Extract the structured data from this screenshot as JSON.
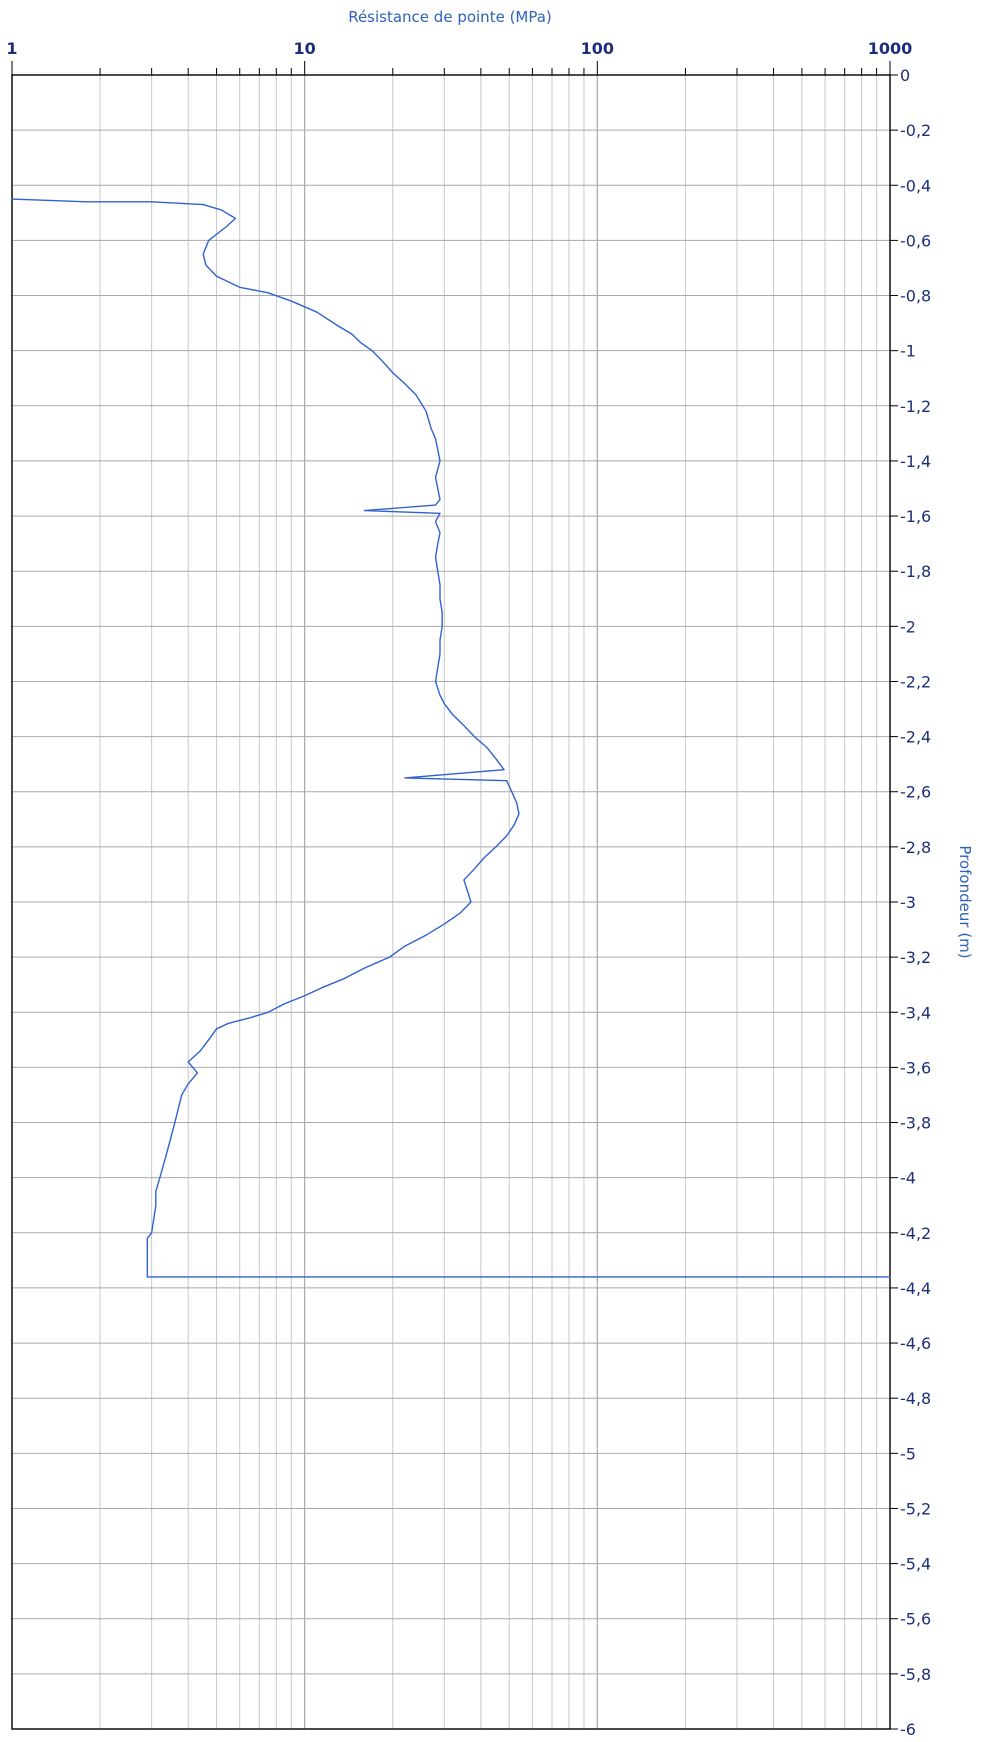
{
  "chart_data": {
    "type": "line",
    "xlabel": "Résistance de pointe (MPa)",
    "ylabel": "Profondeur (m)",
    "x_scale": "log",
    "xlim": [
      1,
      1000
    ],
    "ylim": [
      -6,
      0
    ],
    "x_tick_labels": [
      "1",
      "10",
      "100",
      "1000"
    ],
    "x_tick_values": [
      1,
      10,
      100,
      1000
    ],
    "y_tick_values": [
      0,
      -0.2,
      -0.4,
      -0.6,
      -0.8,
      -1,
      -1.2,
      -1.4,
      -1.6,
      -1.8,
      -2,
      -2.2,
      -2.4,
      -2.6,
      -2.8,
      -3,
      -3.2,
      -3.4,
      -3.6,
      -3.8,
      -4,
      -4.2,
      -4.4,
      -4.6,
      -4.8,
      -5,
      -5.2,
      -5.4,
      -5.6,
      -5.8,
      -6
    ],
    "y_tick_labels": [
      "0",
      "-0,2",
      "-0,4",
      "-0,6",
      "-0,8",
      "-1",
      "-1,2",
      "-1,4",
      "-1,6",
      "-1,8",
      "-2",
      "-2,2",
      "-2,4",
      "-2,6",
      "-2,8",
      "-3",
      "-3,2",
      "-3,4",
      "-3,6",
      "-3,8",
      "-4",
      "-4,2",
      "-4,4",
      "-4,6",
      "-4,8",
      "-5",
      "-5,2",
      "-5,4",
      "-5,6",
      "-5,8",
      "-6"
    ],
    "grid": true,
    "colors": {
      "series": "#2f62d0",
      "grid": "#c8c8c8",
      "axis_text": "#1d2f7a",
      "title": "#2f62b8"
    },
    "series": [
      {
        "name": "",
        "points": [
          [
            1.0,
            -0.45
          ],
          [
            1.8,
            -0.46
          ],
          [
            3.0,
            -0.46
          ],
          [
            4.5,
            -0.47
          ],
          [
            5.2,
            -0.49
          ],
          [
            5.8,
            -0.52
          ],
          [
            5.4,
            -0.55
          ],
          [
            4.7,
            -0.6
          ],
          [
            4.5,
            -0.65
          ],
          [
            4.6,
            -0.69
          ],
          [
            5.0,
            -0.73
          ],
          [
            6.0,
            -0.77
          ],
          [
            7.5,
            -0.79
          ],
          [
            9.0,
            -0.82
          ],
          [
            11.0,
            -0.86
          ],
          [
            13.0,
            -0.91
          ],
          [
            14.5,
            -0.94
          ],
          [
            15.5,
            -0.97
          ],
          [
            17.0,
            -1.0
          ],
          [
            18.5,
            -1.04
          ],
          [
            20.0,
            -1.08
          ],
          [
            22.0,
            -1.12
          ],
          [
            24.0,
            -1.16
          ],
          [
            26.0,
            -1.22
          ],
          [
            27.0,
            -1.28
          ],
          [
            28.0,
            -1.32
          ],
          [
            28.5,
            -1.36
          ],
          [
            29.0,
            -1.4
          ],
          [
            28.0,
            -1.46
          ],
          [
            28.5,
            -1.5
          ],
          [
            29.0,
            -1.54
          ],
          [
            28.0,
            -1.56
          ],
          [
            16.0,
            -1.58
          ],
          [
            29.0,
            -1.59
          ],
          [
            28.0,
            -1.62
          ],
          [
            29.0,
            -1.66
          ],
          [
            28.5,
            -1.7
          ],
          [
            28.0,
            -1.75
          ],
          [
            28.5,
            -1.8
          ],
          [
            29.0,
            -1.85
          ],
          [
            29.0,
            -1.9
          ],
          [
            29.5,
            -1.95
          ],
          [
            29.5,
            -2.0
          ],
          [
            29.0,
            -2.05
          ],
          [
            29.0,
            -2.1
          ],
          [
            28.5,
            -2.15
          ],
          [
            28.0,
            -2.2
          ],
          [
            29.0,
            -2.25
          ],
          [
            30.0,
            -2.28
          ],
          [
            32.0,
            -2.32
          ],
          [
            35.0,
            -2.36
          ],
          [
            38.0,
            -2.4
          ],
          [
            42.0,
            -2.44
          ],
          [
            45.0,
            -2.48
          ],
          [
            48.0,
            -2.52
          ],
          [
            22.0,
            -2.55
          ],
          [
            49.0,
            -2.56
          ],
          [
            51.0,
            -2.6
          ],
          [
            53.0,
            -2.64
          ],
          [
            54.0,
            -2.68
          ],
          [
            52.0,
            -2.72
          ],
          [
            49.0,
            -2.76
          ],
          [
            45.0,
            -2.8
          ],
          [
            41.0,
            -2.84
          ],
          [
            38.0,
            -2.88
          ],
          [
            35.0,
            -2.92
          ],
          [
            36.0,
            -2.96
          ],
          [
            37.0,
            -3.0
          ],
          [
            34.0,
            -3.04
          ],
          [
            30.0,
            -3.08
          ],
          [
            26.0,
            -3.12
          ],
          [
            22.0,
            -3.16
          ],
          [
            19.5,
            -3.2
          ],
          [
            16.0,
            -3.24
          ],
          [
            13.5,
            -3.28
          ],
          [
            11.5,
            -3.31
          ],
          [
            10.0,
            -3.34
          ],
          [
            8.5,
            -3.37
          ],
          [
            7.5,
            -3.4
          ],
          [
            6.5,
            -3.42
          ],
          [
            5.5,
            -3.44
          ],
          [
            5.0,
            -3.46
          ],
          [
            4.7,
            -3.5
          ],
          [
            4.4,
            -3.54
          ],
          [
            4.0,
            -3.58
          ],
          [
            4.3,
            -3.62
          ],
          [
            4.0,
            -3.66
          ],
          [
            3.8,
            -3.7
          ],
          [
            3.7,
            -3.75
          ],
          [
            3.6,
            -3.8
          ],
          [
            3.5,
            -3.85
          ],
          [
            3.4,
            -3.9
          ],
          [
            3.3,
            -3.95
          ],
          [
            3.2,
            -4.0
          ],
          [
            3.1,
            -4.05
          ],
          [
            3.1,
            -4.1
          ],
          [
            3.05,
            -4.15
          ],
          [
            3.0,
            -4.2
          ],
          [
            2.9,
            -4.22
          ],
          [
            2.9,
            -4.3
          ],
          [
            2.9,
            -4.36
          ],
          [
            1000,
            -4.36
          ]
        ]
      }
    ]
  }
}
